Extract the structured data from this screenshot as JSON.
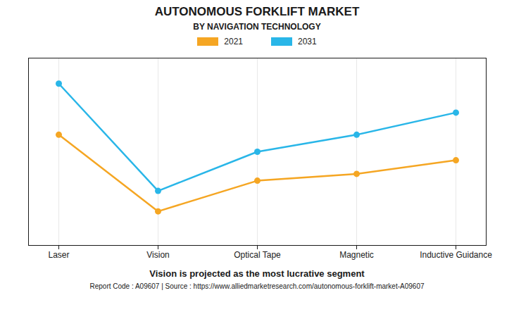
{
  "chart_data": {
    "type": "line",
    "title": "AUTONOMOUS FORKLIFT MARKET",
    "subtitle": "BY NAVIGATION TECHNOLOGY",
    "categories": [
      "Laser",
      "Vision",
      "Optical Tape",
      "Magnetic",
      "Inductive Guidance"
    ],
    "series": [
      {
        "name": "2021",
        "color": "#f5a623",
        "values": [
          65,
          20,
          38,
          42,
          50
        ]
      },
      {
        "name": "2031",
        "color": "#29b6e8",
        "values": [
          95,
          32,
          55,
          65,
          78
        ]
      }
    ],
    "ylim": [
      0,
      110
    ],
    "yticks": [],
    "grid": true,
    "tick_labels": "x",
    "legend": "top",
    "marker": "circle",
    "annotations": [
      "Vision is projected as the most lucrative segment",
      "Report Code : A09607  |  Source : https://www.alliedmarketresearch.com/autonomous-forklift-market-A09607"
    ]
  }
}
